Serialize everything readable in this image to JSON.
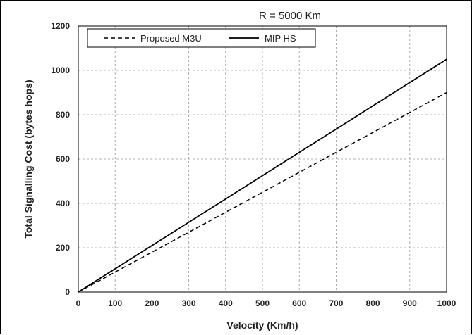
{
  "chart_data": {
    "type": "line",
    "title": "R = 5000 Km",
    "xlabel": "Velocity (Km/h)",
    "ylabel": "Total Signalling Cost (bytes hops)",
    "xlim": [
      0,
      1000
    ],
    "ylim": [
      0,
      1200
    ],
    "xticks": [
      "0",
      "100",
      "200",
      "300",
      "400",
      "500",
      "600",
      "700",
      "800",
      "900",
      "1000"
    ],
    "yticks": [
      "0",
      "200",
      "400",
      "600",
      "800",
      "1000",
      "1200"
    ],
    "grid": true,
    "legend_position": "top-left",
    "series": [
      {
        "name": "Proposed M3U",
        "style": "dashed",
        "color": "#000000",
        "x": [
          0,
          100,
          200,
          300,
          400,
          500,
          600,
          700,
          800,
          900,
          1000
        ],
        "y": [
          0,
          90,
          180,
          270,
          360,
          450,
          540,
          630,
          720,
          810,
          900
        ]
      },
      {
        "name": "MIP HS",
        "style": "solid",
        "color": "#000000",
        "x": [
          0,
          100,
          200,
          300,
          400,
          500,
          600,
          700,
          800,
          900,
          1000
        ],
        "y": [
          0,
          105,
          210,
          315,
          420,
          525,
          630,
          735,
          840,
          945,
          1050
        ]
      }
    ]
  }
}
